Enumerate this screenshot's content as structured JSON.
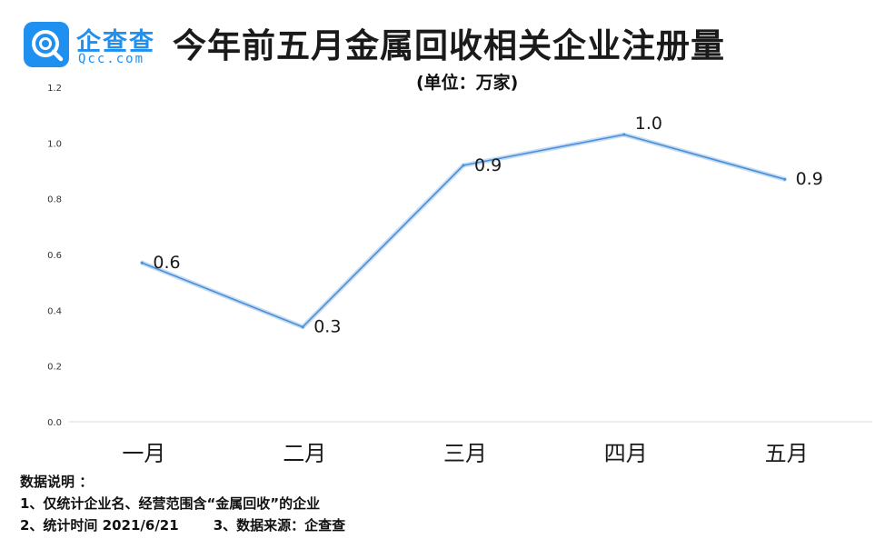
{
  "header": {
    "logo_cn": "企查查",
    "logo_en": "Qcc.com",
    "title": "今年前五月金属回收相关企业注册量",
    "unit": "(单位：万家)"
  },
  "chart_data": {
    "type": "line",
    "title": "今年前五月金属回收相关企业注册量",
    "subtitle": "(单位：万家)",
    "xlabel": "",
    "ylabel": "",
    "categories": [
      "一月",
      "二月",
      "三月",
      "四月",
      "五月"
    ],
    "series": [
      {
        "values": [
          0.57,
          0.34,
          0.92,
          1.03,
          0.87
        ],
        "labels": [
          "0.6",
          "0.3",
          "0.9",
          "1.0",
          "0.9"
        ]
      }
    ],
    "ylim": [
      0,
      1.2
    ],
    "yticks": [
      "0.0",
      "0.2",
      "0.4",
      "0.6",
      "0.8",
      "1.0",
      "1.2"
    ],
    "line_color": "#4a90d9",
    "grid": false,
    "legend": "none"
  },
  "notes": {
    "heading": "数据说明 ：",
    "line1": "1、仅统计企业名、经营范围含“金属回收”的企业",
    "line2a": "2、统计时间 2021/6/21",
    "line2b": "3、数据来源：企查查"
  }
}
